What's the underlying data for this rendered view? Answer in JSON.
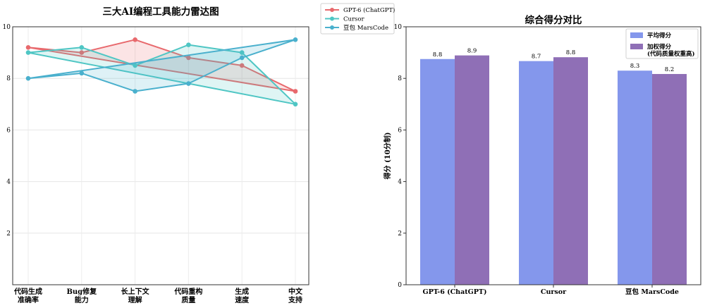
{
  "chart_data": [
    {
      "type": "line",
      "title": "三大AI编程工具能力雷达图",
      "xlabel": "",
      "ylabel": "",
      "categories": [
        "代码生成\n准确率",
        "Bug修复\n能力",
        "长上下文\n理解",
        "代码重构\n质量",
        "生成\n速度",
        "中文\n支持"
      ],
      "ylim": [
        0,
        10
      ],
      "yticks": [
        2,
        4,
        6,
        8,
        10
      ],
      "grid": true,
      "legend": "outside-top-right",
      "series": [
        {
          "name": "GPT-6 (ChatGPT)",
          "color": "#e8696d",
          "values": [
            9.2,
            9.0,
            9.5,
            8.8,
            8.5,
            7.5
          ]
        },
        {
          "name": "Cursor",
          "color": "#4fc6c4",
          "values": [
            9.0,
            9.2,
            8.5,
            9.3,
            9.0,
            7.0
          ]
        },
        {
          "name": "豆包 MarsCode",
          "color": "#4ab0cd",
          "values": [
            8.0,
            8.2,
            7.5,
            7.8,
            8.8,
            9.5
          ]
        }
      ]
    },
    {
      "type": "bar",
      "title": "综合得分对比",
      "xlabel": "",
      "ylabel": "得分 (10分制)",
      "categories": [
        "GPT-6 (ChatGPT)",
        "Cursor",
        "豆包 MarsCode"
      ],
      "ylim": [
        0,
        10
      ],
      "yticks": [
        0,
        2,
        4,
        6,
        8,
        10
      ],
      "legend": "top-right",
      "series": [
        {
          "name": "平均得分",
          "color": "#8497ec",
          "values": [
            8.75,
            8.67,
            8.3
          ],
          "labels": [
            "8.8",
            "8.7",
            "8.3"
          ]
        },
        {
          "name": "加权得分\n(代码质量权重高)",
          "color": "#8f6fb6",
          "values": [
            8.89,
            8.82,
            8.17
          ],
          "labels": [
            "8.9",
            "8.8",
            "8.2"
          ]
        }
      ]
    }
  ]
}
